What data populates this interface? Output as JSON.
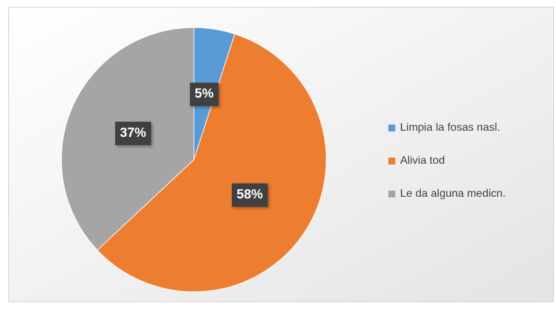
{
  "chart_data": {
    "type": "pie",
    "categories": [
      "Limpia la fosas nasl.",
      "Alivia tod",
      "Le da alguna medicn."
    ],
    "values": [
      5,
      58,
      37
    ],
    "value_labels": [
      "5%",
      "58%",
      "37%"
    ],
    "colors": [
      "#5b9bd5",
      "#ed7d31",
      "#a5a5a5"
    ],
    "legend": "right"
  }
}
